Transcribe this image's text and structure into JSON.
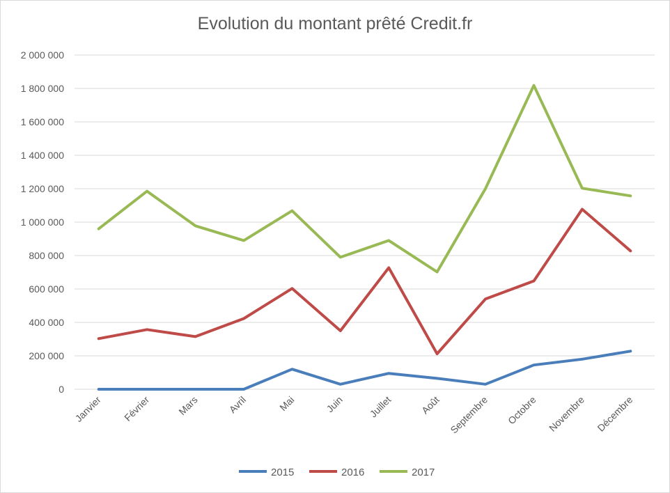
{
  "chart_data": {
    "type": "line",
    "title": "Evolution du montant prêté Credit.fr",
    "xlabel": "",
    "ylabel": "",
    "categories": [
      "Janvier",
      "Février",
      "Mars",
      "Avril",
      "Mai",
      "Juin",
      "Juillet",
      "Août",
      "Septembre",
      "Octobre",
      "Novembre",
      "Décembre"
    ],
    "ylim": [
      0,
      2000000
    ],
    "yticks": [
      0,
      200000,
      400000,
      600000,
      800000,
      1000000,
      1200000,
      1400000,
      1600000,
      1800000,
      2000000
    ],
    "ytick_labels": [
      "0",
      "200 000",
      "400 000",
      "600 000",
      "800 000",
      "1 000 000",
      "1 200 000",
      "1 400 000",
      "1 600 000",
      "1 800 000",
      "2 000 000"
    ],
    "grid": true,
    "legend_position": "bottom",
    "series": [
      {
        "name": "2015",
        "color": "#4a7ebb",
        "values": [
          0,
          0,
          0,
          0,
          120000,
          30000,
          95000,
          65000,
          30000,
          145000,
          180000,
          228000
        ]
      },
      {
        "name": "2016",
        "color": "#be4b48",
        "values": [
          303000,
          357000,
          315000,
          423000,
          603000,
          350000,
          727000,
          212000,
          540000,
          648000,
          1077000,
          828000
        ]
      },
      {
        "name": "2017",
        "color": "#98b954",
        "values": [
          960000,
          1185000,
          978000,
          890000,
          1068000,
          790000,
          890000,
          702000,
          1200000,
          1818000,
          1203000,
          1157000
        ]
      }
    ]
  }
}
